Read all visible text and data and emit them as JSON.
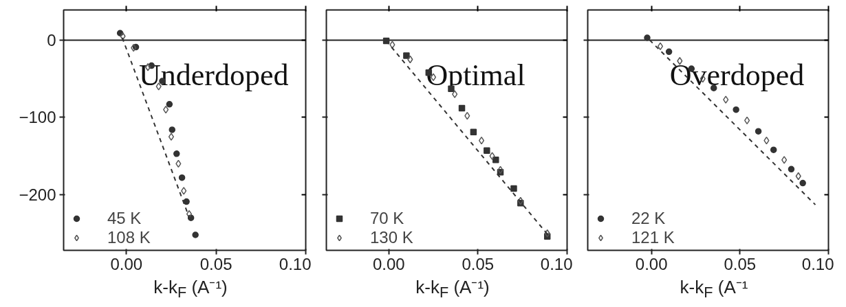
{
  "chart_data": [
    {
      "type": "scatter",
      "xlabel": "k-k$_{F}$ (A⁻¹)",
      "annotations": [
        "Underdoped"
      ],
      "xlim": [
        -0.035,
        0.1
      ],
      "ylim": [
        -272,
        39
      ],
      "xticks": [
        {
          "value": 0,
          "label": "0.00"
        },
        {
          "value": 0.05,
          "label": "0.05"
        },
        {
          "value": 0.1,
          "label": "0.10"
        }
      ],
      "yticks": [
        0,
        -100,
        -200
      ],
      "legend": "bottom left",
      "ref_lines": [
        {
          "axis": "y",
          "value": 0,
          "color": "#222222",
          "line_style": "solid"
        }
      ],
      "series": [
        {
          "name": "45 K",
          "color": "#333333",
          "marker": "circle",
          "x": [
            -0.0035,
            0.0053,
            0.014,
            0.02,
            0.024,
            0.0255,
            0.028,
            0.031,
            0.0335,
            0.036,
            0.0385
          ],
          "values": [
            9,
            -9,
            -33,
            -53,
            -83,
            -116,
            -147,
            -178,
            -209,
            -230,
            -252
          ]
        },
        {
          "name": "108 K",
          "color": "#555555",
          "marker": "diamond",
          "x": [
            -0.002,
            0.004,
            0.012,
            0.018,
            0.022,
            0.025,
            0.029,
            0.032,
            0.035
          ],
          "values": [
            5,
            -10,
            -35,
            -60,
            -90,
            -125,
            -160,
            -195,
            -225
          ]
        },
        {
          "type": "line",
          "color": "#333333",
          "line_style": "dashed",
          "x": [
            -0.0023,
            0.0356
          ],
          "values": [
            3,
            -233
          ]
        }
      ]
    },
    {
      "type": "scatter",
      "xlabel": "k-k$_{F}$ (A⁻¹)",
      "annotations": [
        "Optimal"
      ],
      "xlim": [
        -0.035,
        0.1
      ],
      "ylim": [
        -272,
        39
      ],
      "tick_labels": "x",
      "xticks": [
        {
          "value": 0,
          "label": "0.00"
        },
        {
          "value": 0.05,
          "label": "0.05"
        },
        {
          "value": 0.1,
          "label": "0.10"
        }
      ],
      "yticks": [
        0,
        -100,
        -200
      ],
      "legend": "bottom left",
      "ref_lines": [
        {
          "axis": "y",
          "value": 0,
          "color": "#222222",
          "line_style": "solid"
        }
      ],
      "series": [
        {
          "name": "70 K",
          "color": "#333333",
          "marker": "square",
          "x": [
            -0.0014,
            0.0099,
            0.0224,
            0.035,
            0.041,
            0.0475,
            0.055,
            0.06,
            0.0626,
            0.0701,
            0.0739,
            0.0889
          ],
          "values": [
            -1,
            -20,
            -42,
            -63,
            -88,
            -119,
            -143,
            -155,
            -171,
            -192,
            -211,
            -254
          ]
        },
        {
          "name": "130 K",
          "color": "#555555",
          "marker": "diamond",
          "x": [
            0.002,
            0.012,
            0.025,
            0.037,
            0.044,
            0.052,
            0.058,
            0.0626,
            0.0739,
            0.0889
          ],
          "values": [
            -6,
            -25,
            -48,
            -70,
            -98,
            -130,
            -150,
            -168,
            -208,
            -250
          ]
        },
        {
          "type": "line",
          "color": "#333333",
          "line_style": "dashed",
          "x": [
            -0.0014,
            0.09
          ],
          "values": [
            -1,
            -254
          ]
        }
      ]
    },
    {
      "type": "scatter",
      "xlabel": "k-k$_{F}$ (A⁻¹",
      "annotations": [
        "Overdoped"
      ],
      "xlim": [
        -0.036,
        0.1
      ],
      "ylim": [
        -272,
        39
      ],
      "tick_labels": "x",
      "xticks": [
        {
          "value": 0,
          "label": "0.00"
        },
        {
          "value": 0.05,
          "label": "0.05"
        },
        {
          "value": 0.1,
          "label": "0.10"
        }
      ],
      "yticks": [
        0,
        -100,
        -200
      ],
      "legend": "bottom left",
      "ref_lines": [
        {
          "axis": "y",
          "value": 0,
          "color": "#222222",
          "line_style": "solid"
        }
      ],
      "series": [
        {
          "name": "22 K",
          "color": "#333333",
          "marker": "circle",
          "x": [
            -0.0024,
            0.0099,
            0.0226,
            0.0352,
            0.0478,
            0.0604,
            0.069,
            0.079,
            0.0855
          ],
          "values": [
            3,
            -15,
            -37,
            -62,
            -90,
            -118,
            -142,
            -167,
            -185
          ]
        },
        {
          "name": "121 K",
          "color": "#555555",
          "marker": "diamond",
          "x": [
            0.005,
            0.016,
            0.029,
            0.042,
            0.054,
            0.065,
            0.075,
            0.083
          ],
          "values": [
            -8,
            -27,
            -50,
            -77,
            -104,
            -130,
            -155,
            -176
          ]
        },
        {
          "type": "line",
          "color": "#333333",
          "line_style": "dashed",
          "x": [
            -0.001,
            0.0926
          ],
          "values": [
            0,
            -213
          ]
        }
      ]
    }
  ]
}
